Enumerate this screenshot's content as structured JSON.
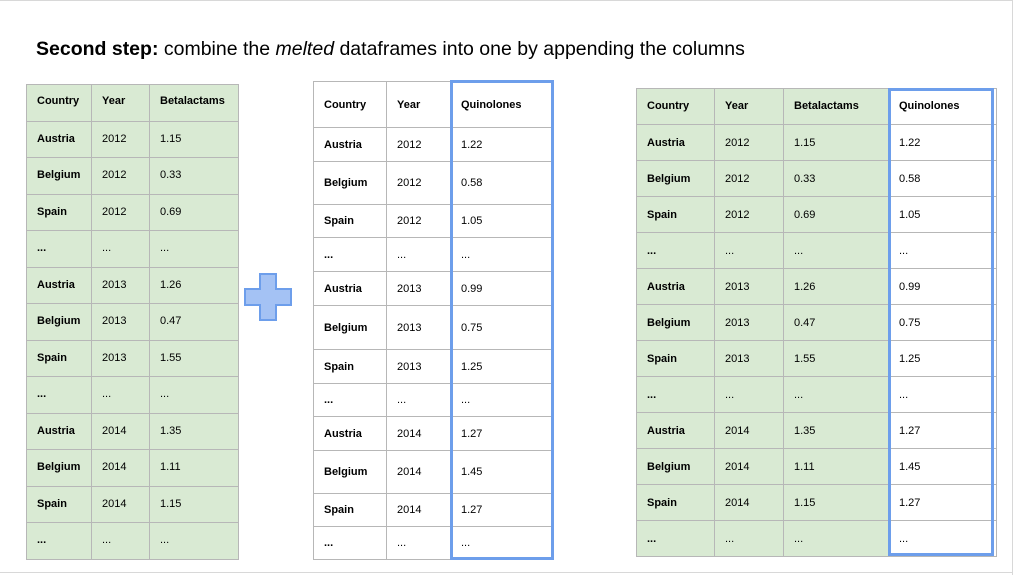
{
  "title": {
    "bold": "Second step:",
    "text_before": " combine the ",
    "italic": "melted",
    "text_after": " dataframes into one by appending the columns"
  },
  "colors": {
    "table_green": "#d9ead3",
    "highlight_blue": "#6d9eeb",
    "plus_fill": "#a4c2f4",
    "plus_stroke": "#6d9eeb"
  },
  "plus_icon": "plus-icon",
  "table_left": {
    "headers": [
      "Country",
      "Year",
      "Betalactams"
    ],
    "rows": [
      [
        "Austria",
        "2012",
        "1.15"
      ],
      [
        "Belgium",
        "2012",
        "0.33"
      ],
      [
        "Spain",
        "2012",
        "0.69"
      ],
      [
        "...",
        "...",
        "..."
      ],
      [
        "Austria",
        "2013",
        "1.26"
      ],
      [
        "Belgium",
        "2013",
        "0.47"
      ],
      [
        "Spain",
        "2013",
        "1.55"
      ],
      [
        "...",
        "...",
        "..."
      ],
      [
        "Austria",
        "2014",
        "1.35"
      ],
      [
        "Belgium",
        "2014",
        "1.11"
      ],
      [
        "Spain",
        "2014",
        "1.15"
      ],
      [
        "...",
        "...",
        "..."
      ]
    ]
  },
  "table_middle": {
    "headers": [
      "Country",
      "Year",
      "Quinolones"
    ],
    "rows": [
      [
        "Austria",
        "2012",
        "1.22"
      ],
      [
        "Belgium",
        "2012",
        "0.58"
      ],
      [
        "Spain",
        "2012",
        "1.05"
      ],
      [
        "...",
        "...",
        "..."
      ],
      [
        "Austria",
        "2013",
        "0.99"
      ],
      [
        "Belgium",
        "2013",
        "0.75"
      ],
      [
        "Spain",
        "2013",
        "1.25"
      ],
      [
        "...",
        "...",
        "..."
      ],
      [
        "Austria",
        "2014",
        "1.27"
      ],
      [
        "Belgium",
        "2014",
        "1.45"
      ],
      [
        "Spain",
        "2014",
        "1.27"
      ],
      [
        "...",
        "...",
        "..."
      ]
    ]
  },
  "table_right": {
    "headers": [
      "Country",
      "Year",
      "Betalactams",
      "Quinolones"
    ],
    "rows": [
      [
        "Austria",
        "2012",
        "1.15",
        "1.22"
      ],
      [
        "Belgium",
        "2012",
        "0.33",
        "0.58"
      ],
      [
        "Spain",
        "2012",
        "0.69",
        "1.05"
      ],
      [
        "...",
        "...",
        "...",
        "..."
      ],
      [
        "Austria",
        "2013",
        "1.26",
        "0.99"
      ],
      [
        "Belgium",
        "2013",
        "0.47",
        "0.75"
      ],
      [
        "Spain",
        "2013",
        "1.55",
        "1.25"
      ],
      [
        "...",
        "...",
        "...",
        "..."
      ],
      [
        "Austria",
        "2014",
        "1.35",
        "1.27"
      ],
      [
        "Belgium",
        "2014",
        "1.11",
        "1.45"
      ],
      [
        "Spain",
        "2014",
        "1.15",
        "1.27"
      ],
      [
        "...",
        "...",
        "...",
        "..."
      ]
    ]
  }
}
